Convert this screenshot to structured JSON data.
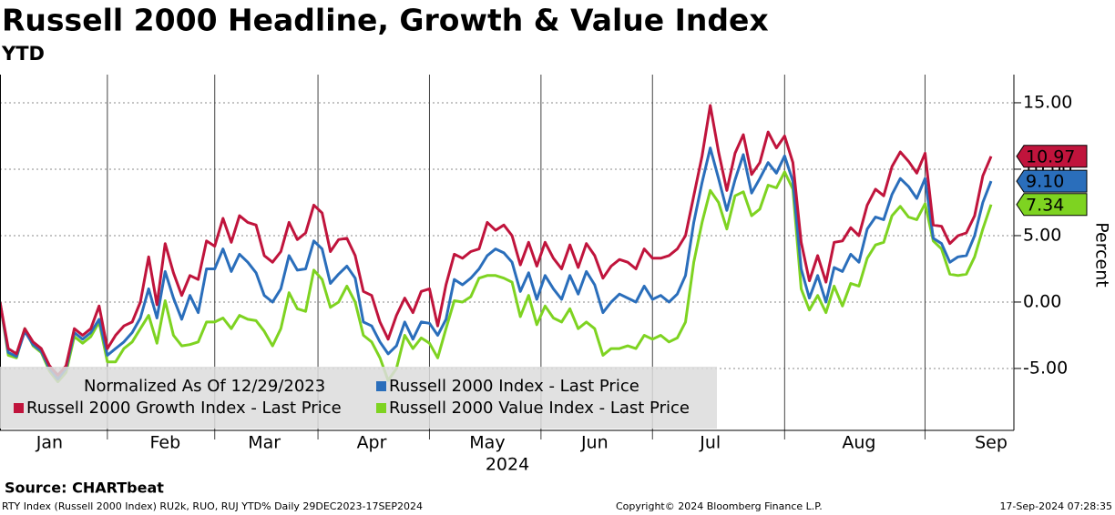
{
  "chart_data": {
    "type": "line",
    "title": "Russell 2000 Headline, Growth & Value Index",
    "subtitle": "YTD",
    "y_axis_label": "Percent",
    "x_axis_label": "2024",
    "note": "Normalized As Of 12/29/2023",
    "source": "Source: CHARTbeat",
    "footer_left": "RTY Index (Russell 2000 Index) RU2k, RUO, RUJ YTD%  Daily 29DEC2023-17SEP2024",
    "footer_center": "Copyright© 2024 Bloomberg Finance L.P.",
    "footer_right": "17-Sep-2024 07:28:35",
    "categories": [
      null,
      null,
      null,
      null,
      null,
      null,
      "Jan",
      null,
      null,
      null,
      null,
      null,
      null,
      null,
      null,
      null,
      null,
      null,
      null,
      null,
      "Feb",
      null,
      null,
      null,
      null,
      null,
      null,
      null,
      null,
      null,
      null,
      null,
      "Mar",
      null,
      null,
      null,
      null,
      null,
      null,
      null,
      null,
      null,
      null,
      null,
      null,
      "Apr",
      null,
      null,
      null,
      null,
      null,
      null,
      null,
      null,
      null,
      null,
      null,
      null,
      null,
      "May",
      null,
      null,
      null,
      null,
      null,
      null,
      null,
      null,
      null,
      null,
      null,
      null,
      "Jun",
      null,
      null,
      null,
      null,
      null,
      null,
      null,
      null,
      null,
      null,
      null,
      null,
      null,
      "Jul",
      null,
      null,
      null,
      null,
      null,
      null,
      null,
      null,
      null,
      null,
      null,
      null,
      null,
      null,
      null,
      null,
      null,
      "Aug",
      null,
      null,
      null,
      null,
      null,
      null,
      null,
      null,
      null,
      null,
      null,
      null,
      null,
      null,
      null,
      "Sep"
    ],
    "series": [
      {
        "name": "Russell 2000 Index - Last Price",
        "color": "#2a6ebb",
        "end_label": "9.10",
        "values": [
          0,
          -3.8,
          -4.1,
          -2.2,
          -3.2,
          -3.7,
          -5,
          -5.8,
          -5,
          -2.3,
          -2.8,
          -2.3,
          -1.3,
          -4,
          -3.5,
          -3,
          -2.3,
          -1.2,
          1,
          -1.2,
          2.3,
          0.3,
          -1.3,
          0.5,
          -0.8,
          2.5,
          2.5,
          4,
          2.3,
          3.6,
          3,
          2.2,
          0.5,
          0,
          1,
          3.5,
          2.4,
          2.5,
          4.6,
          4,
          1.4,
          2.1,
          2.7,
          1.8,
          -1.5,
          -1.8,
          -3,
          -3.9,
          -3.3,
          -1.5,
          -2.8,
          -1.5,
          -1.6,
          -2.5,
          -1.3,
          1.7,
          1.3,
          1.8,
          2.5,
          3.5,
          4,
          3.7,
          3,
          0.8,
          2.2,
          0.2,
          2,
          1,
          0.2,
          2,
          0.6,
          2.3,
          1.3,
          -0.8,
          0,
          0.6,
          0.3,
          0,
          1.2,
          0.2,
          0.5,
          0,
          0.6,
          2,
          6,
          9,
          11.6,
          9.3,
          6.9,
          9.2,
          11.1,
          8.2,
          9.3,
          10.5,
          9.7,
          11,
          9.1,
          2.5,
          0.3,
          2,
          0,
          2.6,
          2.3,
          3.6,
          3,
          5.5,
          6.4,
          6.2,
          8.1,
          9.3,
          8.7,
          7.8,
          9.3,
          4.8,
          4.4,
          3,
          3.4,
          3.5,
          5,
          7.5,
          9.1
        ]
      },
      {
        "name": "Russell 2000 Growth Index - Last Price",
        "color": "#c0143c",
        "end_label": "10.97",
        "values": [
          0,
          -3.5,
          -3.9,
          -2,
          -3,
          -3.5,
          -4.8,
          -5.5,
          -4.8,
          -2,
          -2.5,
          -2,
          -0.3,
          -3.5,
          -2.5,
          -1.8,
          -1.5,
          0,
          3.4,
          -0.2,
          4.4,
          2.2,
          0.5,
          2,
          1.7,
          4.6,
          4.2,
          6.3,
          4.5,
          6.5,
          6,
          5.8,
          3.5,
          3,
          3.8,
          6,
          4.7,
          5.2,
          7.3,
          6.7,
          3.8,
          4.7,
          4.8,
          3.5,
          0.8,
          0.5,
          -1.5,
          -2.8,
          -1,
          0.3,
          -0.8,
          0.8,
          1,
          -1.8,
          1.3,
          3.6,
          3.3,
          3.8,
          4,
          6,
          5.4,
          5.8,
          5,
          2.8,
          4.5,
          2.7,
          4.5,
          3.3,
          2.5,
          4.3,
          2.6,
          4.4,
          3.5,
          1.8,
          2.7,
          3.2,
          3,
          2.5,
          4,
          3.3,
          3.3,
          3.5,
          4,
          5,
          8,
          11,
          14.8,
          11.3,
          8.4,
          11.2,
          12.6,
          9.6,
          10.5,
          12.8,
          11.6,
          12.5,
          10.5,
          4.5,
          1.6,
          3.5,
          1.5,
          4.5,
          4.6,
          5.6,
          5,
          7.3,
          8.5,
          8,
          10.2,
          11.3,
          10.6,
          9.7,
          11.2,
          5.8,
          5.7,
          4.4,
          5,
          5.2,
          6.5,
          9.5,
          10.97
        ]
      },
      {
        "name": "Russell 2000 Value Index - Last Price",
        "color": "#7ed321",
        "end_label": "7.34",
        "values": [
          0,
          -4,
          -4.2,
          -2,
          -3.3,
          -3.8,
          -5.2,
          -6,
          -5.3,
          -2.6,
          -3.1,
          -2.6,
          -1.5,
          -4.5,
          -4.5,
          -3.5,
          -3,
          -2,
          -1,
          -3.1,
          0.1,
          -2.5,
          -3.3,
          -3.2,
          -3,
          -1.5,
          -1.5,
          -1.2,
          -2,
          -1,
          -1.3,
          -1.4,
          -2.2,
          -3.3,
          -2,
          0.7,
          -0.5,
          -0.7,
          2.4,
          1.7,
          -0.4,
          0,
          1.2,
          0,
          -2.5,
          -3,
          -4.2,
          -5.9,
          -5,
          -2.5,
          -3.5,
          -2.7,
          -3.1,
          -4.2,
          -2,
          0.1,
          0,
          0.4,
          1.8,
          2,
          2,
          1.8,
          1.5,
          -1.1,
          0.5,
          -1.7,
          -0.3,
          -1.2,
          -1.5,
          -0.5,
          -2,
          -1.5,
          -2,
          -4,
          -3.5,
          -3.5,
          -3.3,
          -3.5,
          -2.5,
          -2.8,
          -2.5,
          -3,
          -2.7,
          -1.5,
          3,
          6,
          8.4,
          7.5,
          5.5,
          8,
          8.3,
          6.5,
          7,
          8.8,
          8.6,
          9.8,
          8.5,
          1,
          -0.6,
          0.5,
          -0.8,
          1.2,
          -0.3,
          1.4,
          1.2,
          3.3,
          4.3,
          4.5,
          6.5,
          7.2,
          6.4,
          6.2,
          7.4,
          4.6,
          4,
          2.1,
          2,
          2.1,
          3.4,
          5.5,
          7.34
        ]
      }
    ],
    "ylim": [
      -9.66,
      17.12
    ],
    "yticks": [
      {
        "value": 15,
        "label": "15.00"
      },
      {
        "value": 10,
        "label": "10.00"
      },
      {
        "value": 5,
        "label": "5.00"
      },
      {
        "value": 0,
        "label": "0.00"
      },
      {
        "value": -5,
        "label": "-5.00"
      }
    ],
    "grid": true
  }
}
